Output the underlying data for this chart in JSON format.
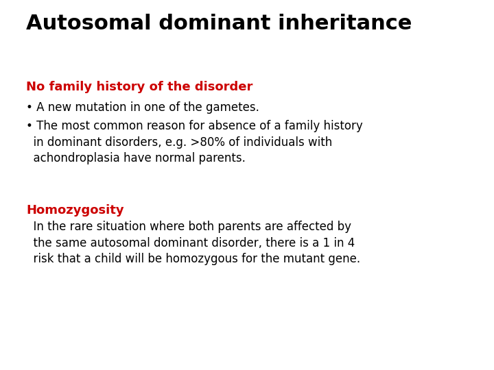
{
  "title": "Autosomal dominant inheritance",
  "title_color": "#000000",
  "title_fontsize": 22,
  "title_weight": "bold",
  "background_color": "#ffffff",
  "section1_heading": "No family history of the disorder",
  "section1_heading_color": "#cc0000",
  "section1_heading_fontsize": 13,
  "section1_heading_weight": "bold",
  "bullet1": "• A new mutation in one of the gametes.",
  "bullet2_line1": "• The most common reason for absence of a family history",
  "bullet2_line2": "  in dominant disorders, e.g. >80% of individuals with",
  "bullet2_line3": "  achondroplasia have normal parents.",
  "bullet_fontsize": 12,
  "bullet_color": "#000000",
  "section2_heading": "Homozygosity",
  "section2_heading_color": "#cc0000",
  "section2_heading_fontsize": 13,
  "section2_heading_weight": "bold",
  "section2_body_line1": "  In the rare situation where both parents are affected by",
  "section2_body_line2": "  the same autosomal dominant disorder, there is a 1 in 4",
  "section2_body_line3": "  risk that a child will be homozygous for the mutant gene.",
  "section2_body_fontsize": 12,
  "section2_body_color": "#000000",
  "font_family": "DejaVu Sans"
}
